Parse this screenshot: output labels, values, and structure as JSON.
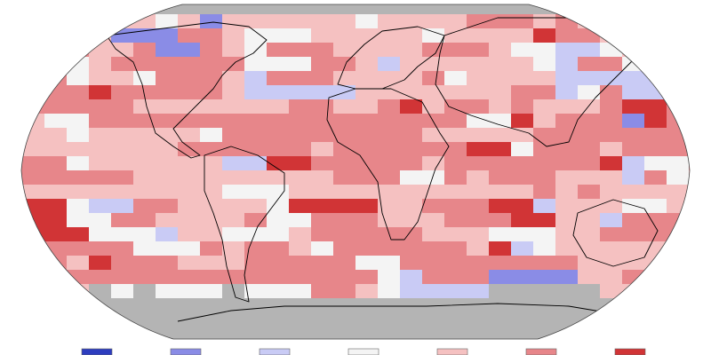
{
  "legend": {
    "colors": [
      "#2d3dbf",
      "#8a8ce6",
      "#c9cbf5",
      "#f4f4f4",
      "#f5c1c1",
      "#e7868a",
      "#d13436"
    ]
  },
  "map": {
    "land_missing_color": "#b4b4b4",
    "outline_color": "#000000"
  }
}
